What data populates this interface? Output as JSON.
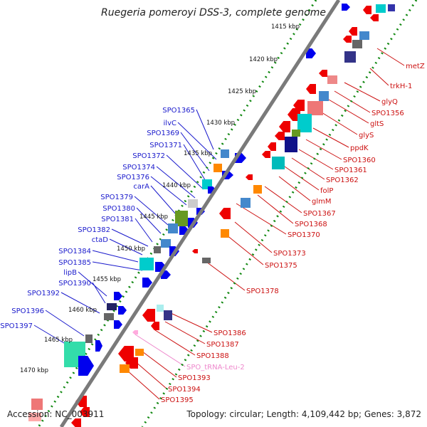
{
  "title": "Ruegeria pomeroyi DSS-3, complete genome",
  "accession": "Accession: NC_003911",
  "summary": "Topology: circular; Length: 4,109,442 bp; Genes: 3,872",
  "colors": {
    "backbone": "#7a7a7a",
    "tick": "#118811",
    "left_label": "#1a1acc",
    "right_label": "#cc1111",
    "trna_label": "#ee88cc"
  },
  "kbp_ticks": [
    "1415 kbp",
    "1420 kbp",
    "1425 kbp",
    "1430 kbp",
    "1435 kbp",
    "1440 kbp",
    "1445 kbp",
    "1450 kbp",
    "1455 kbp",
    "1460 kbp",
    "1465 kbp",
    "1470 kbp"
  ],
  "left_labels": [
    "SPO1365",
    "ilvC",
    "SPO1369",
    "SPO1371",
    "SPO1372",
    "SPO1374",
    "SPO1376",
    "carA",
    "SPO1379",
    "SPO1380",
    "SPO1381",
    "SPO1382",
    "ctaD",
    "SPO1384",
    "SPO1385",
    "lipB",
    "SPO1390",
    "SPO1392",
    "SPO1396",
    "SPO1397"
  ],
  "right_labels": [
    "metZ",
    "trkH-1",
    "glyQ",
    "SPO1356",
    "gltS",
    "glyS",
    "ppdK",
    "SPO1360",
    "SPO1361",
    "SPO1362",
    "folP",
    "glmM",
    "SPO1367",
    "SPO1368",
    "SPO1370",
    "SPO1373",
    "SPO1375",
    "SPO1378",
    "SPO1386",
    "SPO1387",
    "SPO1388",
    "SPO_tRNA-Leu-2",
    "SPO1393",
    "SPO1394",
    "SPO1395"
  ]
}
